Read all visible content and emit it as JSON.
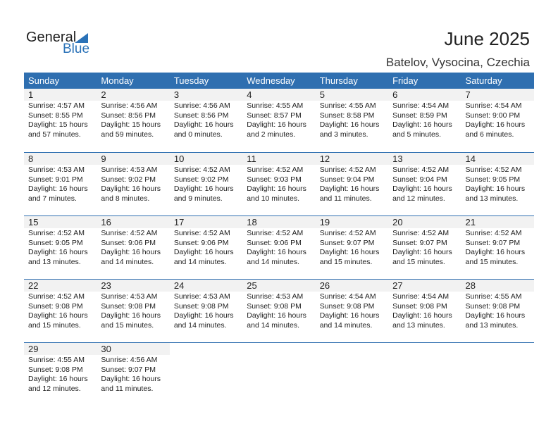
{
  "logo": {
    "general": "General",
    "blue": "Blue"
  },
  "title": "June 2025",
  "location": "Batelov, Vysocina, Czechia",
  "weekdays": [
    "Sunday",
    "Monday",
    "Tuesday",
    "Wednesday",
    "Thursday",
    "Friday",
    "Saturday"
  ],
  "weeks": [
    [
      {
        "day": "1",
        "sunrise": "Sunrise: 4:57 AM",
        "sunset": "Sunset: 8:55 PM",
        "d1": "Daylight: 15 hours",
        "d2": "and 57 minutes."
      },
      {
        "day": "2",
        "sunrise": "Sunrise: 4:56 AM",
        "sunset": "Sunset: 8:56 PM",
        "d1": "Daylight: 15 hours",
        "d2": "and 59 minutes."
      },
      {
        "day": "3",
        "sunrise": "Sunrise: 4:56 AM",
        "sunset": "Sunset: 8:56 PM",
        "d1": "Daylight: 16 hours",
        "d2": "and 0 minutes."
      },
      {
        "day": "4",
        "sunrise": "Sunrise: 4:55 AM",
        "sunset": "Sunset: 8:57 PM",
        "d1": "Daylight: 16 hours",
        "d2": "and 2 minutes."
      },
      {
        "day": "5",
        "sunrise": "Sunrise: 4:55 AM",
        "sunset": "Sunset: 8:58 PM",
        "d1": "Daylight: 16 hours",
        "d2": "and 3 minutes."
      },
      {
        "day": "6",
        "sunrise": "Sunrise: 4:54 AM",
        "sunset": "Sunset: 8:59 PM",
        "d1": "Daylight: 16 hours",
        "d2": "and 5 minutes."
      },
      {
        "day": "7",
        "sunrise": "Sunrise: 4:54 AM",
        "sunset": "Sunset: 9:00 PM",
        "d1": "Daylight: 16 hours",
        "d2": "and 6 minutes."
      }
    ],
    [
      {
        "day": "8",
        "sunrise": "Sunrise: 4:53 AM",
        "sunset": "Sunset: 9:01 PM",
        "d1": "Daylight: 16 hours",
        "d2": "and 7 minutes."
      },
      {
        "day": "9",
        "sunrise": "Sunrise: 4:53 AM",
        "sunset": "Sunset: 9:02 PM",
        "d1": "Daylight: 16 hours",
        "d2": "and 8 minutes."
      },
      {
        "day": "10",
        "sunrise": "Sunrise: 4:52 AM",
        "sunset": "Sunset: 9:02 PM",
        "d1": "Daylight: 16 hours",
        "d2": "and 9 minutes."
      },
      {
        "day": "11",
        "sunrise": "Sunrise: 4:52 AM",
        "sunset": "Sunset: 9:03 PM",
        "d1": "Daylight: 16 hours",
        "d2": "and 10 minutes."
      },
      {
        "day": "12",
        "sunrise": "Sunrise: 4:52 AM",
        "sunset": "Sunset: 9:04 PM",
        "d1": "Daylight: 16 hours",
        "d2": "and 11 minutes."
      },
      {
        "day": "13",
        "sunrise": "Sunrise: 4:52 AM",
        "sunset": "Sunset: 9:04 PM",
        "d1": "Daylight: 16 hours",
        "d2": "and 12 minutes."
      },
      {
        "day": "14",
        "sunrise": "Sunrise: 4:52 AM",
        "sunset": "Sunset: 9:05 PM",
        "d1": "Daylight: 16 hours",
        "d2": "and 13 minutes."
      }
    ],
    [
      {
        "day": "15",
        "sunrise": "Sunrise: 4:52 AM",
        "sunset": "Sunset: 9:05 PM",
        "d1": "Daylight: 16 hours",
        "d2": "and 13 minutes."
      },
      {
        "day": "16",
        "sunrise": "Sunrise: 4:52 AM",
        "sunset": "Sunset: 9:06 PM",
        "d1": "Daylight: 16 hours",
        "d2": "and 14 minutes."
      },
      {
        "day": "17",
        "sunrise": "Sunrise: 4:52 AM",
        "sunset": "Sunset: 9:06 PM",
        "d1": "Daylight: 16 hours",
        "d2": "and 14 minutes."
      },
      {
        "day": "18",
        "sunrise": "Sunrise: 4:52 AM",
        "sunset": "Sunset: 9:06 PM",
        "d1": "Daylight: 16 hours",
        "d2": "and 14 minutes."
      },
      {
        "day": "19",
        "sunrise": "Sunrise: 4:52 AM",
        "sunset": "Sunset: 9:07 PM",
        "d1": "Daylight: 16 hours",
        "d2": "and 15 minutes."
      },
      {
        "day": "20",
        "sunrise": "Sunrise: 4:52 AM",
        "sunset": "Sunset: 9:07 PM",
        "d1": "Daylight: 16 hours",
        "d2": "and 15 minutes."
      },
      {
        "day": "21",
        "sunrise": "Sunrise: 4:52 AM",
        "sunset": "Sunset: 9:07 PM",
        "d1": "Daylight: 16 hours",
        "d2": "and 15 minutes."
      }
    ],
    [
      {
        "day": "22",
        "sunrise": "Sunrise: 4:52 AM",
        "sunset": "Sunset: 9:08 PM",
        "d1": "Daylight: 16 hours",
        "d2": "and 15 minutes."
      },
      {
        "day": "23",
        "sunrise": "Sunrise: 4:53 AM",
        "sunset": "Sunset: 9:08 PM",
        "d1": "Daylight: 16 hours",
        "d2": "and 15 minutes."
      },
      {
        "day": "24",
        "sunrise": "Sunrise: 4:53 AM",
        "sunset": "Sunset: 9:08 PM",
        "d1": "Daylight: 16 hours",
        "d2": "and 14 minutes."
      },
      {
        "day": "25",
        "sunrise": "Sunrise: 4:53 AM",
        "sunset": "Sunset: 9:08 PM",
        "d1": "Daylight: 16 hours",
        "d2": "and 14 minutes."
      },
      {
        "day": "26",
        "sunrise": "Sunrise: 4:54 AM",
        "sunset": "Sunset: 9:08 PM",
        "d1": "Daylight: 16 hours",
        "d2": "and 14 minutes."
      },
      {
        "day": "27",
        "sunrise": "Sunrise: 4:54 AM",
        "sunset": "Sunset: 9:08 PM",
        "d1": "Daylight: 16 hours",
        "d2": "and 13 minutes."
      },
      {
        "day": "28",
        "sunrise": "Sunrise: 4:55 AM",
        "sunset": "Sunset: 9:08 PM",
        "d1": "Daylight: 16 hours",
        "d2": "and 13 minutes."
      }
    ],
    [
      {
        "day": "29",
        "sunrise": "Sunrise: 4:55 AM",
        "sunset": "Sunset: 9:08 PM",
        "d1": "Daylight: 16 hours",
        "d2": "and 12 minutes."
      },
      {
        "day": "30",
        "sunrise": "Sunrise: 4:56 AM",
        "sunset": "Sunset: 9:07 PM",
        "d1": "Daylight: 16 hours",
        "d2": "and 11 minutes."
      },
      null,
      null,
      null,
      null,
      null
    ]
  ]
}
